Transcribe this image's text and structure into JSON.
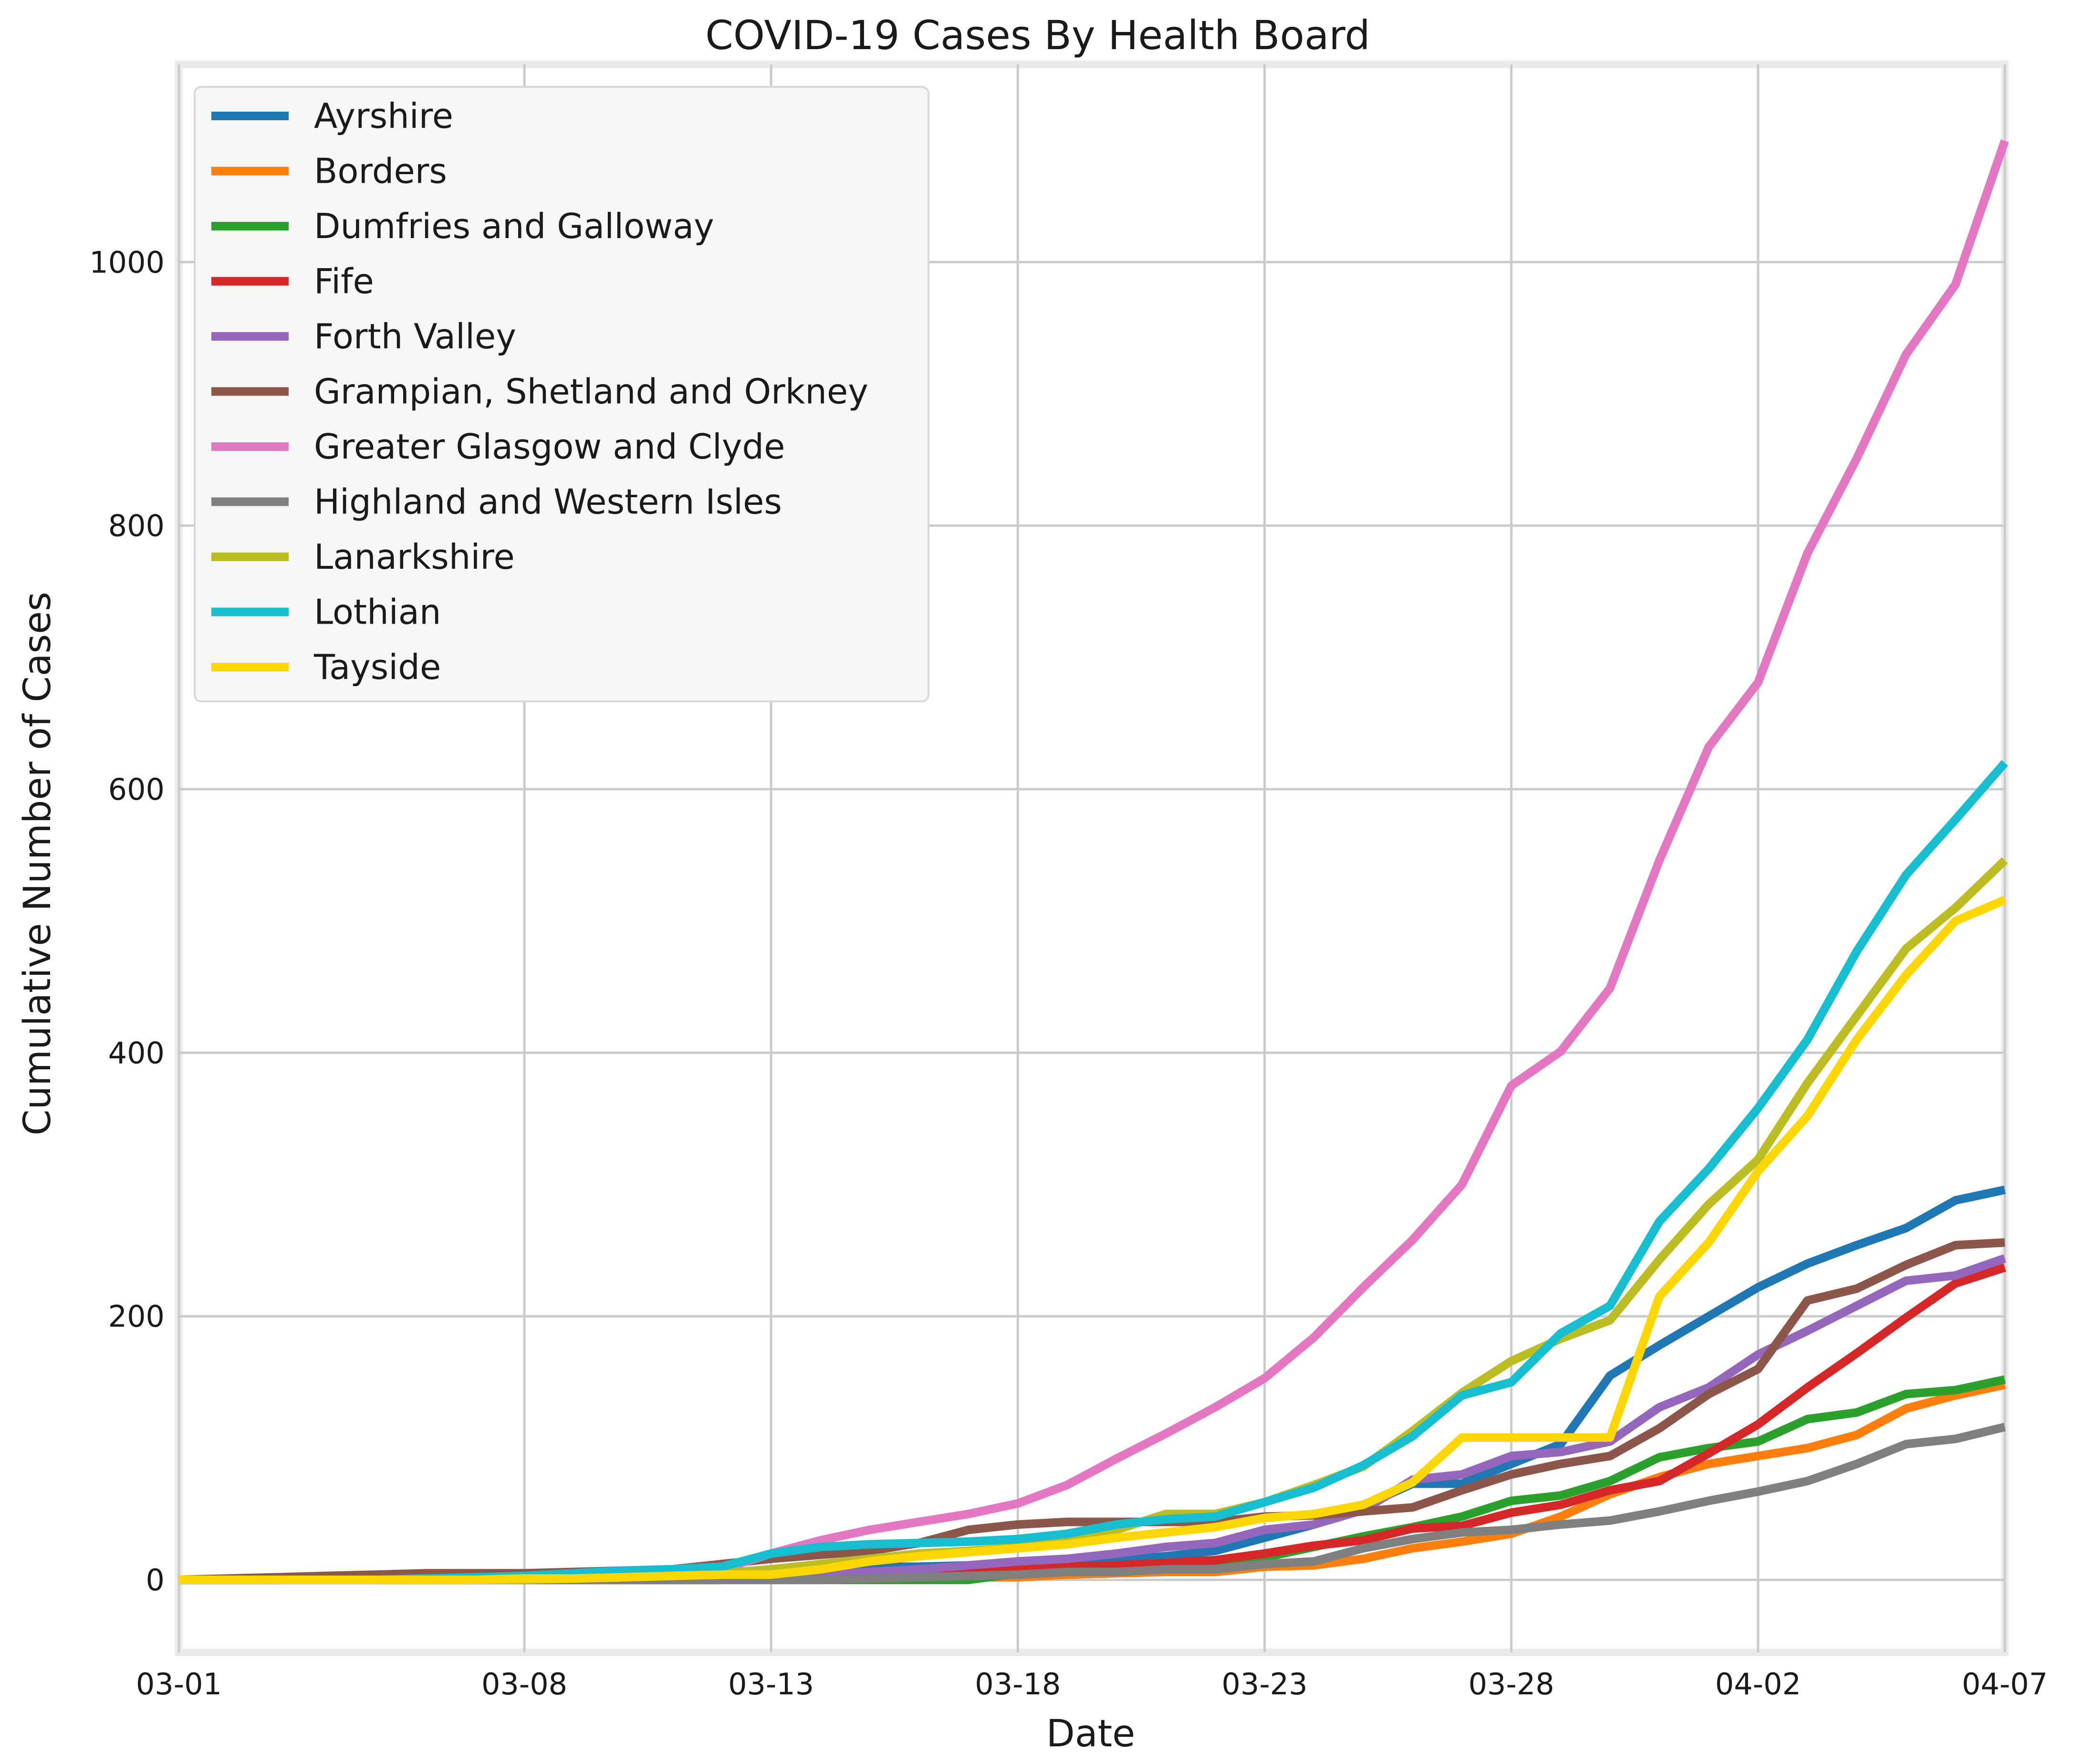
{
  "chart_data": {
    "type": "line",
    "title": "COVID-19 Cases By Health Board",
    "xlabel": "Date",
    "ylabel": "Cumulative Number of Cases",
    "x": [
      "03-01",
      "03-02",
      "03-03",
      "03-04",
      "03-05",
      "03-06",
      "03-07",
      "03-08",
      "03-09",
      "03-10",
      "03-11",
      "03-12",
      "03-13",
      "03-14",
      "03-15",
      "03-16",
      "03-17",
      "03-18",
      "03-19",
      "03-20",
      "03-21",
      "03-22",
      "03-23",
      "03-24",
      "03-25",
      "03-26",
      "03-27",
      "03-28",
      "03-29",
      "03-30",
      "03-31",
      "04-01",
      "04-02",
      "04-03",
      "04-04",
      "04-05",
      "04-06",
      "04-07"
    ],
    "xticks": [
      "03-01",
      "03-08",
      "03-13",
      "03-18",
      "03-23",
      "03-28",
      "04-02",
      "04-07"
    ],
    "yticks": [
      0,
      200,
      400,
      600,
      800,
      1000
    ],
    "ylim": [
      -55,
      1150
    ],
    "grid": true,
    "legend_position": "top-left",
    "series": [
      {
        "name": "Ayrshire",
        "color": "#1f77b4",
        "values": [
          0,
          0,
          0,
          1,
          2,
          3,
          3,
          3,
          3,
          3,
          3,
          5,
          8,
          9,
          10,
          10,
          11,
          12,
          13,
          15,
          18,
          22,
          32,
          42,
          56,
          73,
          73,
          88,
          103,
          155,
          178,
          200,
          222,
          240,
          254,
          267,
          288,
          296
        ]
      },
      {
        "name": "Borders",
        "color": "#ff7f0e",
        "values": [
          0,
          0,
          0,
          0,
          0,
          0,
          0,
          0,
          0,
          0,
          0,
          0,
          1,
          1,
          1,
          1,
          2,
          2,
          4,
          5,
          6,
          6,
          10,
          11,
          16,
          24,
          29,
          35,
          48,
          65,
          78,
          88,
          94,
          100,
          110,
          130,
          140,
          148
        ]
      },
      {
        "name": "Dumfries and Galloway",
        "color": "#2ca02c",
        "values": [
          0,
          0,
          0,
          0,
          0,
          0,
          0,
          0,
          0,
          0,
          0,
          0,
          0,
          0,
          0,
          0,
          0,
          5,
          9,
          11,
          13,
          13,
          17,
          25,
          33,
          40,
          48,
          60,
          64,
          75,
          93,
          100,
          105,
          122,
          127,
          141,
          144,
          152
        ]
      },
      {
        "name": "Fife",
        "color": "#d62728",
        "values": [
          0,
          0,
          0,
          0,
          0,
          0,
          0,
          0,
          0,
          0,
          0,
          0,
          1,
          2,
          4,
          6,
          8,
          9,
          10,
          11,
          13,
          15,
          20,
          26,
          30,
          39,
          41,
          51,
          57,
          68,
          75,
          96,
          118,
          146,
          172,
          199,
          225,
          237
        ]
      },
      {
        "name": "Forth Valley",
        "color": "#9467bd",
        "values": [
          0,
          0,
          0,
          0,
          0,
          0,
          0,
          0,
          0,
          0,
          1,
          1,
          2,
          4,
          6,
          8,
          11,
          14,
          16,
          20,
          25,
          28,
          38,
          42,
          53,
          76,
          80,
          94,
          97,
          105,
          131,
          146,
          171,
          189,
          208,
          227,
          231,
          244
        ]
      },
      {
        "name": "Grampian, Shetland and Orkney",
        "color": "#8c564b",
        "values": [
          0,
          1,
          2,
          3,
          4,
          5,
          5,
          5,
          6,
          7,
          8,
          12,
          16,
          19,
          22,
          28,
          38,
          42,
          44,
          44,
          44,
          44,
          48,
          49,
          52,
          55,
          68,
          80,
          88,
          94,
          115,
          141,
          160,
          212,
          221,
          239,
          254,
          256
        ]
      },
      {
        "name": "Greater Glasgow and Clyde",
        "color": "#e377c2",
        "values": [
          0,
          0,
          0,
          0,
          0,
          1,
          1,
          1,
          1,
          2,
          4,
          8,
          20,
          30,
          38,
          44,
          50,
          58,
          72,
          92,
          111,
          131,
          153,
          184,
          222,
          258,
          300,
          375,
          401,
          449,
          546,
          632,
          681,
          779,
          851,
          930,
          983,
          1092
        ]
      },
      {
        "name": "Highland and Western Isles",
        "color": "#7f7f7f",
        "values": [
          0,
          0,
          0,
          0,
          0,
          0,
          0,
          0,
          0,
          0,
          0,
          0,
          0,
          0,
          1,
          2,
          3,
          4,
          6,
          6,
          8,
          8,
          12,
          14,
          24,
          31,
          36,
          38,
          42,
          45,
          52,
          60,
          67,
          75,
          88,
          103,
          107,
          116
        ]
      },
      {
        "name": "Lanarkshire",
        "color": "#bcbd22",
        "values": [
          0,
          0,
          0,
          0,
          0,
          0,
          0,
          0,
          1,
          2,
          3,
          5,
          8,
          12,
          16,
          20,
          22,
          25,
          30,
          38,
          50,
          50,
          59,
          72,
          86,
          113,
          142,
          166,
          183,
          197,
          243,
          285,
          319,
          377,
          428,
          479,
          510,
          546
        ]
      },
      {
        "name": "Lothian",
        "color": "#17becf",
        "values": [
          0,
          0,
          0,
          0,
          0,
          1,
          2,
          3,
          5,
          7,
          8,
          10,
          20,
          25,
          27,
          28,
          29,
          31,
          35,
          42,
          46,
          48,
          59,
          70,
          87,
          109,
          140,
          150,
          187,
          208,
          272,
          312,
          358,
          410,
          477,
          535,
          577,
          620
        ]
      },
      {
        "name": "Tayside",
        "color": "#ffd700",
        "values": [
          0,
          0,
          0,
          0,
          0,
          0,
          0,
          1,
          1,
          2,
          3,
          4,
          4,
          8,
          14,
          18,
          21,
          24,
          27,
          32,
          36,
          40,
          47,
          50,
          57,
          74,
          108,
          108,
          108,
          108,
          215,
          256,
          310,
          352,
          410,
          459,
          500,
          516
        ]
      }
    ]
  }
}
